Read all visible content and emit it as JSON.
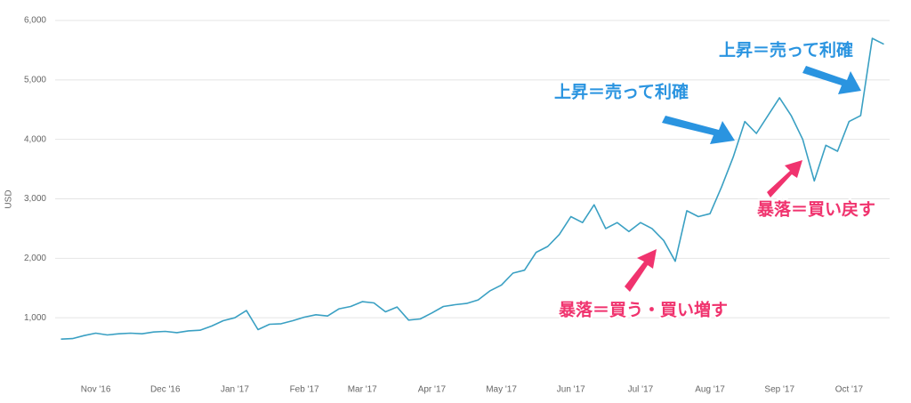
{
  "chart_data": {
    "type": "line",
    "y_label": "USD",
    "categories": [
      null,
      null,
      null,
      "Nov '16",
      null,
      null,
      null,
      null,
      null,
      "Dec '16",
      null,
      null,
      null,
      null,
      null,
      "Jan '17",
      null,
      null,
      null,
      null,
      null,
      "Feb '17",
      null,
      null,
      null,
      null,
      "Mar '17",
      null,
      null,
      null,
      null,
      null,
      "Apr '17",
      null,
      null,
      null,
      null,
      null,
      "May '17",
      null,
      null,
      null,
      null,
      null,
      "Jun '17",
      null,
      null,
      null,
      null,
      null,
      "Jul '17",
      null,
      null,
      null,
      null,
      null,
      "Aug '17",
      null,
      null,
      null,
      null,
      null,
      "Sep '17",
      null,
      null,
      null,
      null,
      null,
      "Oct '17",
      null,
      null,
      null
    ],
    "values": [
      640,
      650,
      700,
      740,
      710,
      730,
      740,
      730,
      760,
      770,
      750,
      780,
      790,
      860,
      950,
      1000,
      1120,
      800,
      890,
      900,
      950,
      1010,
      1050,
      1030,
      1150,
      1190,
      1270,
      1250,
      1100,
      1180,
      960,
      980,
      1080,
      1190,
      1220,
      1240,
      1300,
      1450,
      1550,
      1750,
      1800,
      2100,
      2200,
      2400,
      2700,
      2600,
      2900,
      2500,
      2600,
      2450,
      2600,
      2500,
      2300,
      1950,
      2800,
      2700,
      2750,
      3200,
      3700,
      4300,
      4100,
      4400,
      4700,
      4400,
      4000,
      3300,
      3900,
      3800,
      4300,
      4400,
      5700,
      5600
    ],
    "color": "#3aa0c3",
    "ylim": [
      0,
      6000
    ],
    "yticks": [
      {
        "value": 1000,
        "label": "1,000"
      },
      {
        "value": 2000,
        "label": "2,000"
      },
      {
        "value": 3000,
        "label": "3,000"
      },
      {
        "value": 4000,
        "label": "4,000"
      },
      {
        "value": 5000,
        "label": "5,000"
      },
      {
        "value": 6000,
        "label": "6,000"
      }
    ],
    "grid": true,
    "annotations": [
      "上昇＝売って利確",
      "上昇＝売って利確",
      "暴落＝買い戻す",
      "暴落＝買う・買い増す"
    ]
  }
}
